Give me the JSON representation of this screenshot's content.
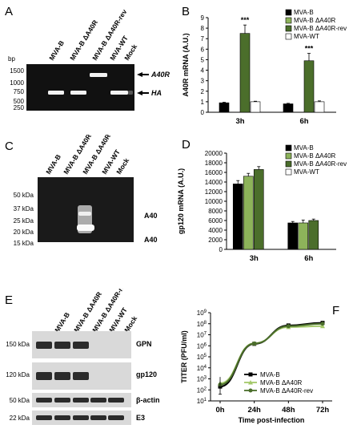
{
  "panels": {
    "A": {
      "letter": "A",
      "unit": "bp",
      "lanes": [
        "MVA-B",
        "MVA-B ΔA40R",
        "MVA-B ΔA40R-rev",
        "MVA-WT",
        "Mock"
      ],
      "markers": [
        "1500",
        "1000",
        "750",
        "500",
        "250"
      ],
      "bands": [
        "A40R",
        "HA"
      ]
    },
    "B": {
      "letter": "B",
      "ylabel": "A40R mRNA (A.U.)",
      "sig": "***"
    },
    "C": {
      "letter": "C",
      "lanes": [
        "MVA-B",
        "MVA-B ΔA40R",
        "MVA-B ΔA40R-rev",
        "MVA-WT",
        "Mock"
      ],
      "markers": [
        "50 kDa",
        "37 kDa",
        "25 kDa",
        "20 kDa",
        "15 kDa"
      ],
      "bands": [
        "A40",
        "A40"
      ]
    },
    "D": {
      "letter": "D",
      "ylabel": "gp120 mRNA (A.U.)"
    },
    "E": {
      "letter": "E",
      "lanes": [
        "MVA-B",
        "MVA-B ΔA40R",
        "MVA-B ΔA40R-rev",
        "MVA-WT",
        "Mock"
      ],
      "markers": [
        "150 kDa",
        "120 kDa",
        "50 kDa",
        "22 kDa"
      ],
      "blots": [
        "GPN",
        "gp120",
        "β-actin",
        "E3"
      ]
    },
    "F": {
      "letter": "F",
      "ylabel": "TITER (PFU/ml)",
      "xlabel": "Time post-infection"
    }
  },
  "chart_data": [
    {
      "type": "bar",
      "panel": "B",
      "categories": [
        "3h",
        "6h"
      ],
      "ylabel": "A40R mRNA (A.U.)",
      "ylim": [
        0,
        9
      ],
      "yticks": [
        0,
        1,
        2,
        3,
        4,
        5,
        6,
        7,
        8,
        9
      ],
      "series": [
        {
          "name": "MVA-B",
          "values": [
            0.9,
            0.8
          ],
          "errors": [
            0.05,
            0.05
          ],
          "color": "#000000"
        },
        {
          "name": "MVA-B ΔA40R",
          "values": [
            0,
            0
          ],
          "errors": [
            0,
            0
          ],
          "color": "#8db35a"
        },
        {
          "name": "MVA-B ΔA40R-rev",
          "values": [
            7.5,
            4.9
          ],
          "errors": [
            0.8,
            0.7
          ],
          "color": "#4b6e2b"
        },
        {
          "name": "MVA-WT",
          "values": [
            1.0,
            1.0
          ],
          "errors": [
            0.05,
            0.08
          ],
          "color": "#ffffff"
        }
      ],
      "annotations": [
        "***",
        "***"
      ],
      "legend": "top-right"
    },
    {
      "type": "bar",
      "panel": "D",
      "categories": [
        "3h",
        "6h"
      ],
      "ylabel": "gp120 mRNA (A.U.)",
      "ylim": [
        0,
        20000
      ],
      "yticks": [
        0,
        2000,
        4000,
        6000,
        8000,
        10000,
        12000,
        14000,
        16000,
        18000,
        20000
      ],
      "series": [
        {
          "name": "MVA-B",
          "values": [
            13600,
            5500
          ],
          "errors": [
            700,
            300
          ],
          "color": "#000000"
        },
        {
          "name": "MVA-B ΔA40R",
          "values": [
            15200,
            5500
          ],
          "errors": [
            600,
            600
          ],
          "color": "#8db35a"
        },
        {
          "name": "MVA-B ΔA40R-rev",
          "values": [
            16600,
            6000
          ],
          "errors": [
            600,
            300
          ],
          "color": "#4b6e2b"
        },
        {
          "name": "MVA-WT",
          "values": [
            0,
            0
          ],
          "errors": [
            0,
            0
          ],
          "color": "#ffffff"
        }
      ],
      "legend": "top-right"
    },
    {
      "type": "line",
      "panel": "F",
      "x": [
        "0h",
        "24h",
        "48h",
        "72h"
      ],
      "ylabel": "TITER (PFU/ml)",
      "xlabel": "Time post-infection",
      "yscale": "log",
      "ylim_exp": [
        1,
        9
      ],
      "series": [
        {
          "name": "MVA-B",
          "values": [
            200,
            1500000,
            70000000,
            120000000
          ],
          "color": "#000000",
          "marker": "square"
        },
        {
          "name": "MVA-B ΔA40R",
          "values": [
            400,
            1700000,
            50000000,
            60000000
          ],
          "color": "#a4c96a",
          "marker": "triangle"
        },
        {
          "name": "MVA-B ΔA40R-rev",
          "values": [
            300,
            1600000,
            60000000,
            100000000
          ],
          "color": "#4b6e2b",
          "marker": "circle"
        }
      ],
      "legend": "bottom-left"
    }
  ]
}
